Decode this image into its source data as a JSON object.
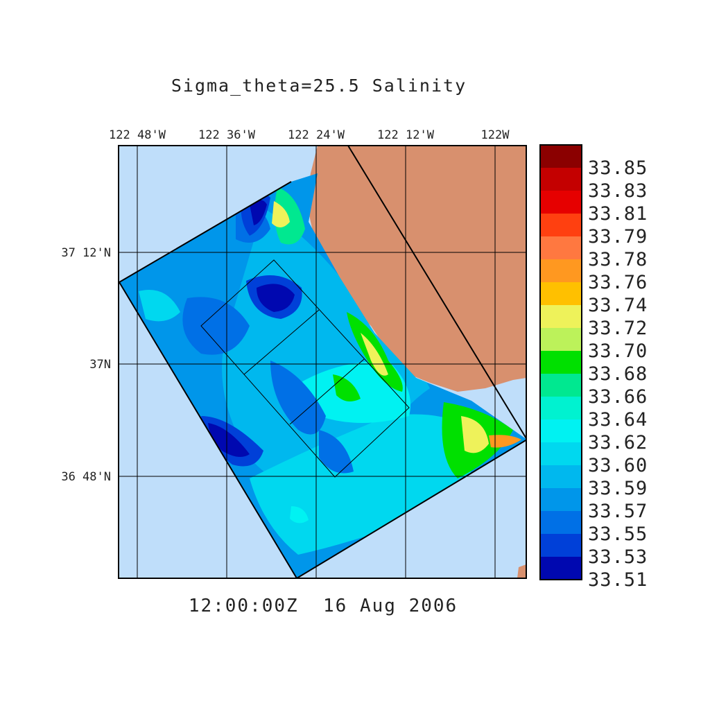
{
  "title": "Sigma_theta=25.5 Salinity",
  "timestamp": "12:00:00Z  16 Aug 2006",
  "lon_ticks": [
    "122 48'W",
    "122 36'W",
    "122 24'W",
    "122 12'W",
    "122W"
  ],
  "lat_ticks": [
    "37 12'N",
    "37N",
    "36 48'N"
  ],
  "colorbar": {
    "labels": [
      "33.85",
      "33.83",
      "33.81",
      "33.79",
      "33.78",
      "33.76",
      "33.74",
      "33.72",
      "33.70",
      "33.68",
      "33.66",
      "33.64",
      "33.62",
      "33.60",
      "33.59",
      "33.57",
      "33.55",
      "33.53",
      "33.51"
    ],
    "colors": [
      "#8b0000",
      "#c40000",
      "#e60000",
      "#ff4010",
      "#ff7840",
      "#ff9820",
      "#ffc000",
      "#eef25a",
      "#bcf25a",
      "#00e000",
      "#00e890",
      "#00f2d0",
      "#00f2f2",
      "#00d8ef",
      "#00b8ee",
      "#0096ea",
      "#0070e6",
      "#0040d8",
      "#0008b0"
    ]
  },
  "colors": {
    "ocean": "#bfdefa",
    "land": "#d8906e",
    "frame": "#000000"
  }
}
